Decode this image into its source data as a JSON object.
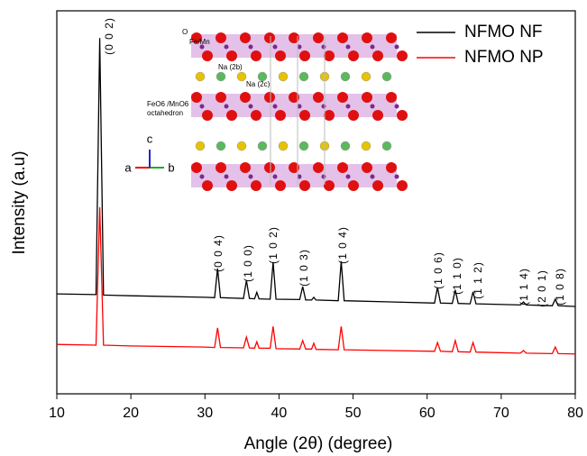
{
  "chart_data": {
    "type": "line",
    "xlabel": "Angle (2θ) (degree)",
    "ylabel": "Intensity (a.u)",
    "x": [
      10,
      15.3,
      15.8,
      16.3,
      20,
      30,
      31.3,
      31.7,
      32.1,
      35.2,
      35.6,
      36.0,
      36.7,
      37.0,
      37.3,
      38.8,
      39.2,
      39.6,
      42.8,
      43.2,
      43.6,
      44.4,
      44.7,
      45.0,
      48.0,
      48.4,
      48.8,
      55,
      61.0,
      61.4,
      61.8,
      63.4,
      63.8,
      64.2,
      65.8,
      66.2,
      66.6,
      72.6,
      73.0,
      73.4,
      76.9,
      77.3,
      77.7,
      80
    ],
    "series": [
      {
        "name": "NFMO NF",
        "color": "#000000",
        "values": [
          26.1,
          25.9,
          92.9,
          25.8,
          25.6,
          25.2,
          25.1,
          32.7,
          25.1,
          24.9,
          29.6,
          24.9,
          24.8,
          26.5,
          24.8,
          24.7,
          34.4,
          24.7,
          24.6,
          28.0,
          24.5,
          24.5,
          25.2,
          24.5,
          24.3,
          34.6,
          24.3,
          24.0,
          23.7,
          27.8,
          23.7,
          23.6,
          27.1,
          23.6,
          23.5,
          26.6,
          23.5,
          23.2,
          24.0,
          23.2,
          23.0,
          24.7,
          23.0,
          22.8
        ]
      },
      {
        "name": "NFMO NP",
        "color": "#ff0000",
        "values": [
          12.9,
          12.7,
          48.7,
          12.7,
          12.5,
          12.2,
          12.1,
          17.2,
          12.1,
          12.0,
          14.8,
          12.0,
          11.9,
          13.6,
          11.9,
          11.9,
          17.6,
          11.8,
          11.7,
          13.9,
          11.7,
          11.7,
          13.2,
          11.6,
          11.5,
          17.6,
          11.5,
          11.3,
          11.1,
          13.4,
          11.1,
          11.0,
          13.9,
          11.0,
          10.9,
          13.4,
          10.9,
          10.6,
          11.3,
          10.6,
          10.5,
          12.2,
          10.5,
          10.4
        ]
      }
    ],
    "xlim": [
      10,
      80
    ],
    "xticks": [
      10,
      20,
      30,
      40,
      50,
      60,
      70,
      80
    ],
    "ylim": [
      0,
      100
    ],
    "legend": "upper right",
    "annotations": [
      "(0 0 2)",
      "(0 0 4)",
      "(1 0 0)",
      "(1 0 2)",
      "(1 0 3)",
      "(1 0 4)",
      "(1 0 6)",
      "(1 1 0)",
      "(1 1 2)",
      "(1 1 4)",
      "(2 0 1)",
      "(1 0 8)"
    ],
    "inset": {
      "labels": [
        "O",
        "Fe/Mn",
        "Na (2b)",
        "Na (2c)",
        "FeO6 /MnO6",
        "octahedron"
      ],
      "axes": [
        "a",
        "b",
        "c"
      ]
    }
  }
}
